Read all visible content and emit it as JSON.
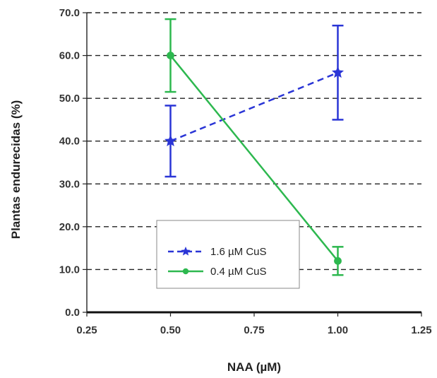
{
  "chart_data": {
    "type": "line",
    "title": "",
    "xlabel": "NAA (µM)",
    "ylabel": "Plantas endurecidas (%)",
    "xlim": [
      0.25,
      1.25
    ],
    "ylim": [
      0,
      70
    ],
    "xticks": [
      "0.25",
      "0.50",
      "0.75",
      "1.00",
      "1.25"
    ],
    "yticks": [
      "0.0",
      "10.0",
      "20.0",
      "30.0",
      "40.0",
      "50.0",
      "60.0",
      "70.0"
    ],
    "grid": "horizontal dashed",
    "legend_position": "bottom-left",
    "series": [
      {
        "name": "1.6  µM CuS",
        "color": "#2a35d6",
        "line_style": "dashed",
        "marker": "star",
        "x": [
          0.5,
          1.0
        ],
        "y": [
          40.0,
          56.0
        ],
        "err_low": [
          8.3,
          11.0
        ],
        "err_high": [
          8.3,
          11.0
        ]
      },
      {
        "name": "0.4  µM CuS",
        "color": "#2db84f",
        "line_style": "solid",
        "marker": "circle",
        "x": [
          0.5,
          1.0
        ],
        "y": [
          60.0,
          12.0
        ],
        "err_low": [
          8.5,
          3.3
        ],
        "err_high": [
          8.5,
          3.3
        ]
      }
    ]
  }
}
